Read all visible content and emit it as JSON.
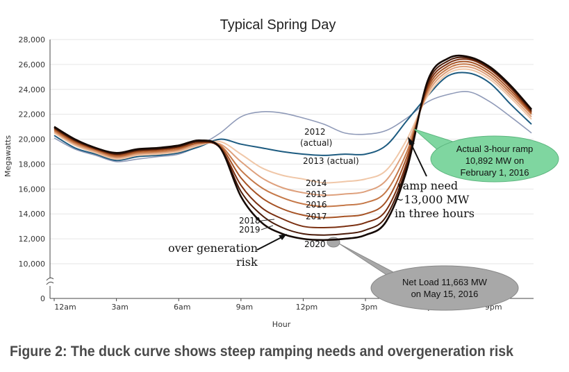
{
  "caption": "Figure 2: The duck curve shows steep ramping needs and overgeneration risk",
  "chart_data": {
    "type": "line",
    "title": "Typical Spring Day",
    "xlabel": "Hour",
    "ylabel": "Megawatts",
    "ylim": [
      10000,
      28000
    ],
    "y_axis_break": true,
    "y_ticks": [
      "0",
      "10,000",
      "12,000",
      "14,000",
      "16,000",
      "18,000",
      "20,000",
      "22,000",
      "24,000",
      "26,000",
      "28,000"
    ],
    "x_tick_labels": [
      "12am",
      "3am",
      "6am",
      "9am",
      "12pm",
      "3pm",
      "6pm",
      "9pm"
    ],
    "x_tick_hours": [
      0,
      3,
      6,
      9,
      12,
      15,
      18,
      21
    ],
    "grid": true,
    "x_hours": [
      0,
      1,
      2,
      3,
      4,
      5,
      6,
      7,
      8,
      9,
      10,
      11,
      12,
      13,
      14,
      15,
      16,
      17,
      18,
      19,
      20,
      21,
      22,
      23
    ],
    "series": [
      {
        "name": "2012 (actual)",
        "color": "#8f9ab8",
        "values": [
          20100,
          19200,
          18700,
          18200,
          18400,
          18600,
          18800,
          19500,
          20500,
          21800,
          22200,
          22100,
          21700,
          21200,
          20500,
          20400,
          20700,
          21700,
          23000,
          23600,
          23800,
          23000,
          21800,
          20500
        ]
      },
      {
        "name": "2013 (actual)",
        "color": "#1d5b80",
        "values": [
          20300,
          19300,
          18800,
          18300,
          18600,
          18700,
          18900,
          19400,
          20000,
          19600,
          19300,
          19000,
          18800,
          18700,
          18800,
          18800,
          19500,
          21500,
          23500,
          25100,
          25300,
          24500,
          22800,
          21200
        ]
      },
      {
        "name": "2014",
        "color": "#f0c7a8",
        "values": [
          20500,
          19500,
          18900,
          18400,
          18700,
          18800,
          19000,
          19500,
          19800,
          18800,
          17700,
          17100,
          16800,
          16500,
          16600,
          16800,
          17500,
          20000,
          23500,
          25300,
          25600,
          24800,
          23300,
          21600
        ]
      },
      {
        "name": "2015",
        "color": "#dea07c",
        "values": [
          20600,
          19600,
          19000,
          18500,
          18800,
          18900,
          19100,
          19600,
          19600,
          18200,
          16900,
          16100,
          15700,
          15500,
          15600,
          15800,
          16700,
          19500,
          23700,
          25500,
          25800,
          25000,
          23500,
          21800
        ]
      },
      {
        "name": "2016",
        "color": "#c57848",
        "values": [
          20700,
          19700,
          19100,
          18600,
          18900,
          19000,
          19200,
          19700,
          19500,
          17500,
          16100,
          15300,
          14800,
          14600,
          14700,
          14900,
          15800,
          19000,
          23900,
          25700,
          26000,
          25200,
          23700,
          22000
        ]
      },
      {
        "name": "2017",
        "color": "#a65224",
        "values": [
          20800,
          19800,
          19200,
          18700,
          19000,
          19100,
          19300,
          19700,
          19400,
          16900,
          15300,
          14400,
          13900,
          13700,
          13800,
          14000,
          15000,
          18600,
          24100,
          25900,
          26200,
          25400,
          23900,
          22100
        ]
      },
      {
        "name": "2018",
        "color": "#7a2f10",
        "values": [
          20900,
          19900,
          19200,
          18800,
          19100,
          19200,
          19400,
          19800,
          19300,
          16300,
          14500,
          13600,
          13000,
          12900,
          13000,
          13300,
          14300,
          18200,
          24300,
          26100,
          26400,
          25600,
          24100,
          22200
        ]
      },
      {
        "name": "2019",
        "color": "#4a1a08",
        "values": [
          20900,
          19900,
          19300,
          18800,
          19100,
          19200,
          19400,
          19800,
          19300,
          15800,
          13900,
          12900,
          12400,
          12300,
          12400,
          12700,
          13800,
          17900,
          24500,
          26300,
          26500,
          25700,
          24200,
          22300
        ]
      },
      {
        "name": "2020",
        "color": "#150904",
        "values": [
          21000,
          20000,
          19300,
          18900,
          19200,
          19300,
          19500,
          19900,
          19300,
          15400,
          13300,
          12400,
          12000,
          11900,
          12000,
          12300,
          13400,
          17600,
          24700,
          26500,
          26600,
          25800,
          24300,
          22400
        ]
      }
    ],
    "annotations": [
      {
        "id": "ramp",
        "line1": "ramp need",
        "line2": "~13,000 MW",
        "line3": "in three hours"
      },
      {
        "id": "overgen",
        "line1": "over generation",
        "line2": "risk"
      },
      {
        "id": "actual_ramp",
        "line1": "Actual 3-hour ramp",
        "line2": "10,892 MW on",
        "line3": "February 1, 2016",
        "color": "#7fd6a0"
      },
      {
        "id": "net_load",
        "line1": "Net Load 11,663 MW",
        "line2": "on May 15, 2016",
        "color": "#a8a8a8"
      }
    ],
    "series_label_text": {
      "2012": "2012",
      "2012_sub": "(actual)",
      "2013": "2013 (actual)",
      "2014": "2014",
      "2015": "2015",
      "2016": "2016",
      "2017": "2017",
      "2018": "2018",
      "2019": "2019",
      "2020": "2020"
    }
  }
}
